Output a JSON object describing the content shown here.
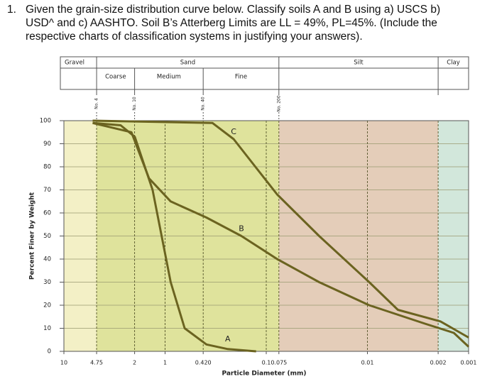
{
  "question": {
    "number": "1.",
    "lines": [
      "Given the grain-size distribution curve below. Classify soils A and B using a) USCS b)",
      "USD^ and c) AASHTO. Soil B’s Atterberg Limits are LL = 49%, PL=45%. (Include the",
      "respective charts of classification systems in justifying your answers)."
    ]
  },
  "chart_data": {
    "type": "line",
    "xlabel": "Particle Diameter (mm)",
    "ylabel": "Percent Finer by Weight",
    "log_x": true,
    "grid": true,
    "xlim": [
      10,
      0.001
    ],
    "ylim": [
      0,
      100
    ],
    "xticks": [
      10,
      4.75,
      2,
      1,
      {
        "value": 0.42,
        "label": "0.420"
      },
      0.1,
      0.075,
      0.01,
      0.002,
      0.001
    ],
    "yticks": [
      0,
      10,
      20,
      30,
      40,
      50,
      60,
      70,
      80,
      90,
      100
    ],
    "zones": {
      "names": [
        "Gravel",
        "Sand",
        "Silt",
        "Clay"
      ],
      "colors": [
        "#f3f0c6",
        "#dfe39c",
        "#e4cdb9",
        "#d2e7db"
      ]
    },
    "sand_parts": [
      "Coarse",
      "Medium",
      "Fine"
    ],
    "sieves": [
      "No. 4",
      "No. 10",
      "No. 40",
      "No. 200"
    ],
    "series": [
      {
        "name": "A",
        "color": "#6b6320",
        "x": [
          5.2,
          2.75,
          1.99,
          1.33,
          0.88,
          0.64,
          0.39,
          0.24,
          0.126
        ],
        "y": [
          99,
          98,
          93,
          70,
          30,
          10,
          3,
          1,
          0
        ]
      },
      {
        "name": "B",
        "color": "#6b6320",
        "x": [
          5.2,
          2.15,
          1.44,
          0.88,
          0.39,
          0.176,
          0.078,
          0.03,
          0.0096,
          0.0027,
          0.0014,
          0.001
        ],
        "y": [
          99,
          95,
          75,
          65,
          58,
          50,
          40,
          30,
          20,
          12,
          8,
          2
        ]
      },
      {
        "name": "C",
        "color": "#6b6320",
        "x": [
          5.2,
          0.34,
          0.21,
          0.128,
          0.078,
          0.03,
          0.0096,
          0.005,
          0.0019,
          0.001
        ],
        "y": [
          100,
          99,
          92,
          80,
          68,
          50,
          30,
          18,
          13,
          6
        ]
      }
    ]
  }
}
